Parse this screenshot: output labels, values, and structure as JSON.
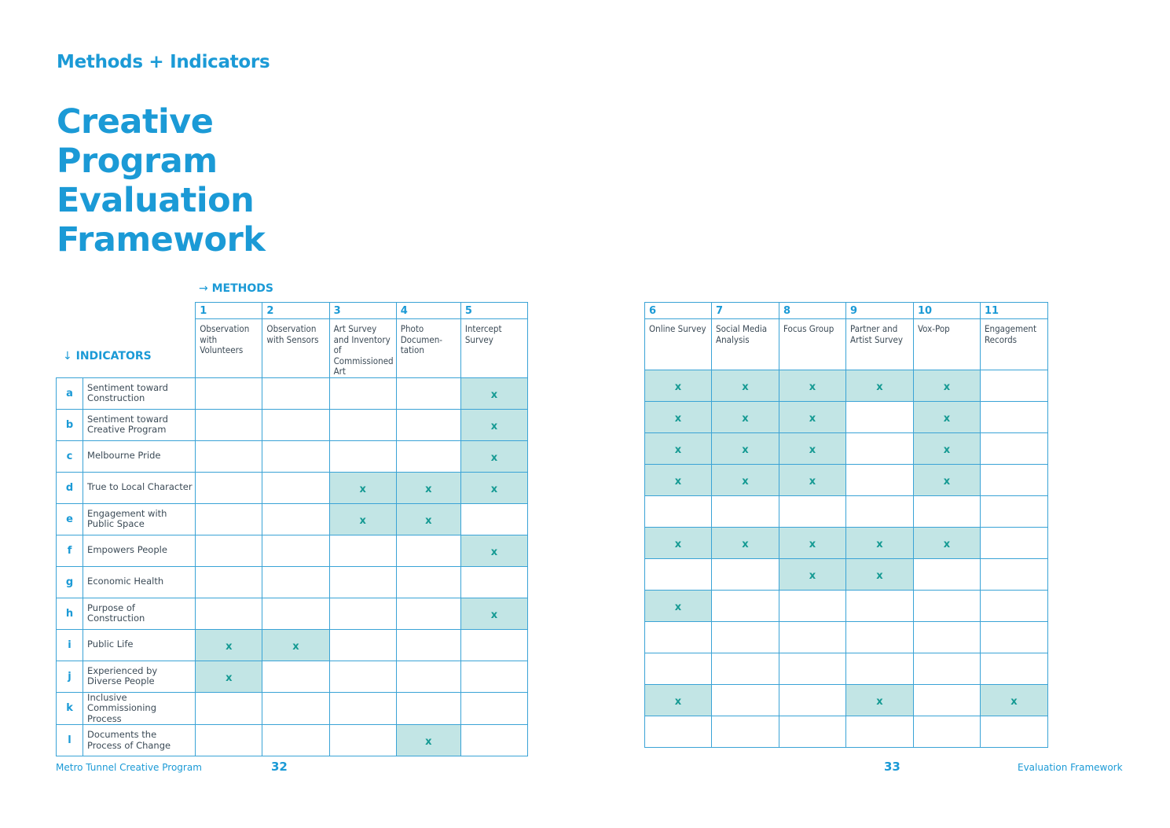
{
  "section_label": "Methods + Indicators",
  "title_lines": [
    "Creative",
    "Program",
    "Evaluation",
    "Framework"
  ],
  "methods_label": "METHODS",
  "indicators_label": "INDICATORS",
  "arrow_right": "→",
  "arrow_down": "↓",
  "methods_left": [
    {
      "num": "1",
      "name": "Observation with Volunteers"
    },
    {
      "num": "2",
      "name": "Observation with Sensors"
    },
    {
      "num": "3",
      "name": "Art Survey and Inventory of Commissioned Art"
    },
    {
      "num": "4",
      "name": "Photo Documen-tation"
    },
    {
      "num": "5",
      "name": "Intercept Survey"
    }
  ],
  "methods_right": [
    {
      "num": "6",
      "name": "Online Survey"
    },
    {
      "num": "7",
      "name": "Social Media Analysis"
    },
    {
      "num": "8",
      "name": "Focus Group"
    },
    {
      "num": "9",
      "name": "Partner and Artist Survey"
    },
    {
      "num": "10",
      "name": "Vox-Pop"
    },
    {
      "num": "11",
      "name": "Engagement Records"
    }
  ],
  "mark": "x",
  "indicators": [
    {
      "letter": "a",
      "name": "Sentiment toward Construction",
      "left": [
        0,
        0,
        0,
        0,
        1
      ],
      "right": [
        1,
        1,
        1,
        1,
        1,
        0
      ]
    },
    {
      "letter": "b",
      "name": "Sentiment toward Creative Program",
      "left": [
        0,
        0,
        0,
        0,
        1
      ],
      "right": [
        1,
        1,
        1,
        0,
        1,
        0
      ]
    },
    {
      "letter": "c",
      "name": "Melbourne Pride",
      "left": [
        0,
        0,
        0,
        0,
        1
      ],
      "right": [
        1,
        1,
        1,
        0,
        1,
        0
      ]
    },
    {
      "letter": "d",
      "name": "True to Local Character",
      "left": [
        0,
        0,
        1,
        1,
        1
      ],
      "right": [
        1,
        1,
        1,
        0,
        1,
        0
      ]
    },
    {
      "letter": "e",
      "name": "Engagement with Public Space",
      "left": [
        0,
        0,
        1,
        1,
        0
      ],
      "right": [
        0,
        0,
        0,
        0,
        0,
        0
      ]
    },
    {
      "letter": "f",
      "name": "Empowers People",
      "left": [
        0,
        0,
        0,
        0,
        1
      ],
      "right": [
        1,
        1,
        1,
        1,
        1,
        0
      ]
    },
    {
      "letter": "g",
      "name": "Economic Health",
      "left": [
        0,
        0,
        0,
        0,
        0
      ],
      "right": [
        0,
        0,
        1,
        1,
        0,
        0
      ]
    },
    {
      "letter": "h",
      "name": "Purpose of Construction",
      "left": [
        0,
        0,
        0,
        0,
        1
      ],
      "right": [
        1,
        0,
        0,
        0,
        0,
        0
      ]
    },
    {
      "letter": "i",
      "name": "Public Life",
      "left": [
        1,
        1,
        0,
        0,
        0
      ],
      "right": [
        0,
        0,
        0,
        0,
        0,
        0
      ]
    },
    {
      "letter": "j",
      "name": "Experienced by Diverse People",
      "left": [
        1,
        0,
        0,
        0,
        0
      ],
      "right": [
        0,
        0,
        0,
        0,
        0,
        0
      ]
    },
    {
      "letter": "k",
      "name": "Inclusive Commissioning Process",
      "left": [
        0,
        0,
        0,
        0,
        0
      ],
      "right": [
        1,
        0,
        0,
        1,
        0,
        1
      ]
    },
    {
      "letter": "l",
      "name": "Documents the Process of Change",
      "left": [
        0,
        0,
        0,
        1,
        0
      ],
      "right": [
        0,
        0,
        0,
        0,
        0,
        0
      ]
    }
  ],
  "footer": {
    "left_text": "Metro Tunnel Creative Program",
    "left_page": "32",
    "right_page": "33",
    "right_text": "Evaluation Framework"
  },
  "colors": {
    "accent": "#1b9ad6",
    "highlight": "#c2e5e5",
    "mark": "#159a93"
  }
}
